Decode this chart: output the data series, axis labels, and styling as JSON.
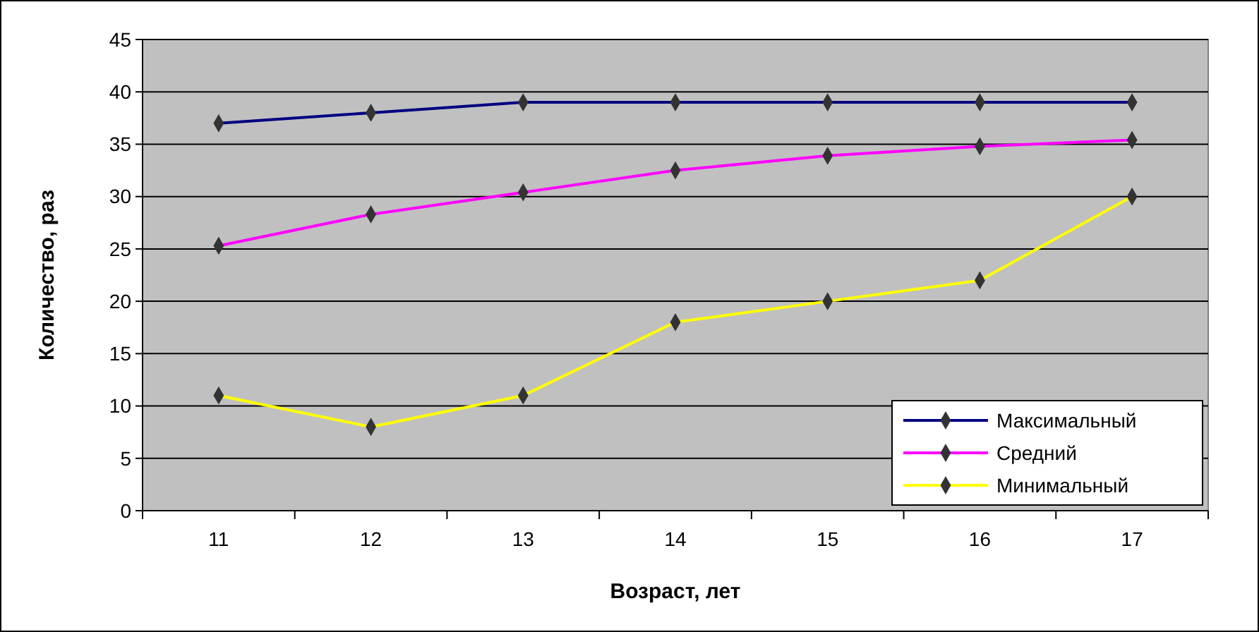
{
  "chart_data": {
    "type": "line",
    "xlabel": "Возраст, лет",
    "ylabel": "Количество, раз",
    "categories": [
      "11",
      "12",
      "13",
      "14",
      "15",
      "16",
      "17"
    ],
    "series": [
      {
        "name": "Максимальный",
        "color": "#000080",
        "values": [
          37,
          38,
          39,
          39,
          39,
          39,
          39
        ]
      },
      {
        "name": "Средний",
        "color": "#ff00ff",
        "values": [
          25.3,
          28.3,
          30.4,
          32.5,
          33.9,
          34.8,
          35.4
        ]
      },
      {
        "name": "Минимальный",
        "color": "#ffff00",
        "values": [
          11,
          8,
          11,
          18,
          20,
          22,
          30
        ]
      }
    ],
    "ylim": [
      0,
      45
    ],
    "yticks": [
      0,
      5,
      10,
      15,
      20,
      25,
      30,
      35,
      40,
      45
    ],
    "grid": "y",
    "legend": "bottom right",
    "marker": "diamond",
    "line_style": "solid"
  }
}
